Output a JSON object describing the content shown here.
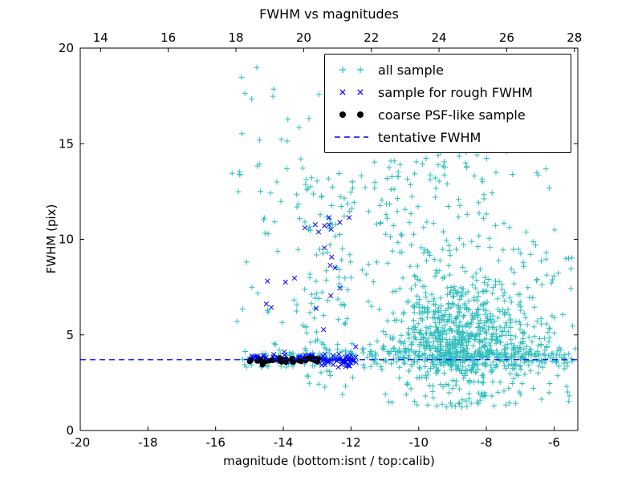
{
  "chart_data": {
    "type": "scatter",
    "title": "FWHM vs magnitudes",
    "xlabel": "magnitude (bottom:isnt / top:calib)",
    "ylabel": "FWHM (pix)",
    "x_axis_bottom": {
      "lim": [
        -20,
        -5.3
      ],
      "tick_values": [
        -20,
        -18,
        -16,
        -14,
        -12,
        -10,
        -8,
        -6
      ],
      "tick_labels": [
        "-20",
        "-18",
        "-16",
        "-14",
        "-12",
        "-10",
        "-8",
        "-6"
      ]
    },
    "x_axis_top": {
      "offset": 33.4,
      "tick_values": [
        14,
        16,
        18,
        20,
        22,
        24,
        26,
        28
      ],
      "tick_labels": [
        "14",
        "16",
        "18",
        "20",
        "22",
        "24",
        "26",
        "28"
      ]
    },
    "y_axis": {
      "lim": [
        0,
        20
      ],
      "tick_values": [
        0,
        5,
        10,
        15,
        20
      ],
      "tick_labels": [
        "0",
        "5",
        "10",
        "15",
        "20"
      ]
    },
    "tentative_fwhm_y": 3.7,
    "colors": {
      "all_sample": "#2fbdbd",
      "rough_fwhm": "#0000ff",
      "psf_like": "#000000",
      "tentative_line": "#0000ff",
      "frame": "#000000"
    },
    "legend": {
      "entries": [
        {
          "label": "all sample",
          "marker": "plus",
          "color": "#2fbdbd"
        },
        {
          "label": "sample for rough FWHM",
          "marker": "x",
          "color": "#0000ff"
        },
        {
          "label": "coarse PSF-like sample",
          "marker": "dot",
          "color": "#000000"
        },
        {
          "label": "tentative FWHM",
          "marker": "dashed",
          "color": "#0000ff"
        }
      ]
    },
    "series": [
      {
        "name": "all sample",
        "marker": "plus",
        "color": "#2fbdbd",
        "clusters": [
          {
            "seed": 11,
            "n": 520,
            "x": {
              "dist": "normal",
              "mu": -8.8,
              "sigma": 0.95
            },
            "y": {
              "dist": "normal",
              "mu": 5.2,
              "sigma": 1.5
            },
            "clip_y": [
              2.2,
              10.5
            ]
          },
          {
            "seed": 12,
            "n": 210,
            "x": {
              "dist": "normal",
              "mu": -8.6,
              "sigma": 1.15
            },
            "y": {
              "dist": "normal",
              "mu": 4.0,
              "sigma": 0.6
            },
            "clip_y": [
              2.6,
              6.0
            ]
          },
          {
            "seed": 13,
            "n": 170,
            "x": {
              "dist": "normal",
              "mu": -9.1,
              "sigma": 1.4
            },
            "y": {
              "dist": "uniform",
              "min": 6.0,
              "max": 15.5
            },
            "clip_x": [
              -12.0,
              -5.5
            ]
          },
          {
            "seed": 14,
            "n": 90,
            "x": {
              "dist": "uniform",
              "min": -15.2,
              "max": -12.0
            },
            "y": {
              "dist": "normal",
              "mu": 3.85,
              "sigma": 0.3
            }
          },
          {
            "seed": 15,
            "n": 200,
            "x": {
              "dist": "uniform",
              "min": -12.0,
              "max": -5.45
            },
            "y": {
              "dist": "normal",
              "mu": 3.9,
              "sigma": 0.3
            }
          },
          {
            "seed": 16,
            "n": 85,
            "x": {
              "dist": "uniform",
              "min": -13.5,
              "max": -11.9
            },
            "y": {
              "dist": "uniform",
              "min": 2.2,
              "max": 13.5
            }
          },
          {
            "seed": 17,
            "n": 60,
            "x": {
              "dist": "uniform",
              "min": -15.6,
              "max": -12.0
            },
            "y": {
              "dist": "uniform",
              "min": 5.0,
              "max": 16.0
            }
          },
          {
            "seed": 18,
            "n": 12,
            "x": {
              "dist": "uniform",
              "min": -15.6,
              "max": -12.3
            },
            "y": {
              "dist": "uniform",
              "min": 15.5,
              "max": 19.4
            }
          },
          {
            "seed": 19,
            "n": 50,
            "x": {
              "dist": "uniform",
              "min": -7.2,
              "max": -5.35
            },
            "y": {
              "dist": "uniform",
              "min": 1.8,
              "max": 9.5
            }
          },
          {
            "seed": 20,
            "n": 60,
            "x": {
              "dist": "normal",
              "mu": -8.8,
              "sigma": 1.4
            },
            "y": {
              "dist": "uniform",
              "min": 1.2,
              "max": 2.6
            }
          },
          {
            "seed": 21,
            "n": 25,
            "x": {
              "dist": "uniform",
              "min": -11.5,
              "max": -9.5
            },
            "y": {
              "dist": "uniform",
              "min": 9.0,
              "max": 14.5
            }
          }
        ]
      },
      {
        "name": "sample for rough FWHM",
        "marker": "x",
        "color": "#0000ff",
        "clusters": [
          {
            "seed": 31,
            "n": 60,
            "x": {
              "dist": "uniform",
              "min": -15.0,
              "max": -12.8
            },
            "y": {
              "dist": "normal",
              "mu": 3.82,
              "sigma": 0.1
            }
          },
          {
            "seed": 32,
            "n": 50,
            "x": {
              "dist": "uniform",
              "min": -12.9,
              "max": -11.85
            },
            "y": {
              "dist": "normal",
              "mu": 3.72,
              "sigma": 0.18
            }
          },
          {
            "seed": 33,
            "n": 16,
            "x": {
              "dist": "normal",
              "mu": -12.55,
              "sigma": 0.3
            },
            "y": {
              "dist": "uniform",
              "min": 4.3,
              "max": 12.0
            }
          },
          {
            "seed": 34,
            "n": 6,
            "x": {
              "dist": "uniform",
              "min": -14.7,
              "max": -13.0
            },
            "y": {
              "dist": "uniform",
              "min": 5.5,
              "max": 8.5
            }
          }
        ]
      },
      {
        "name": "coarse PSF-like sample",
        "marker": "dot",
        "color": "#000000",
        "clusters": [
          {
            "seed": 41,
            "n": 34,
            "x": {
              "dist": "uniform",
              "min": -15.05,
              "max": -13.2
            },
            "y": {
              "dist": "normal",
              "mu": 3.66,
              "sigma": 0.06
            }
          },
          {
            "seed": 42,
            "n": 9,
            "x": {
              "dist": "uniform",
              "min": -13.3,
              "max": -12.85
            },
            "y": {
              "dist": "normal",
              "mu": 3.7,
              "sigma": 0.06
            }
          }
        ]
      }
    ]
  }
}
